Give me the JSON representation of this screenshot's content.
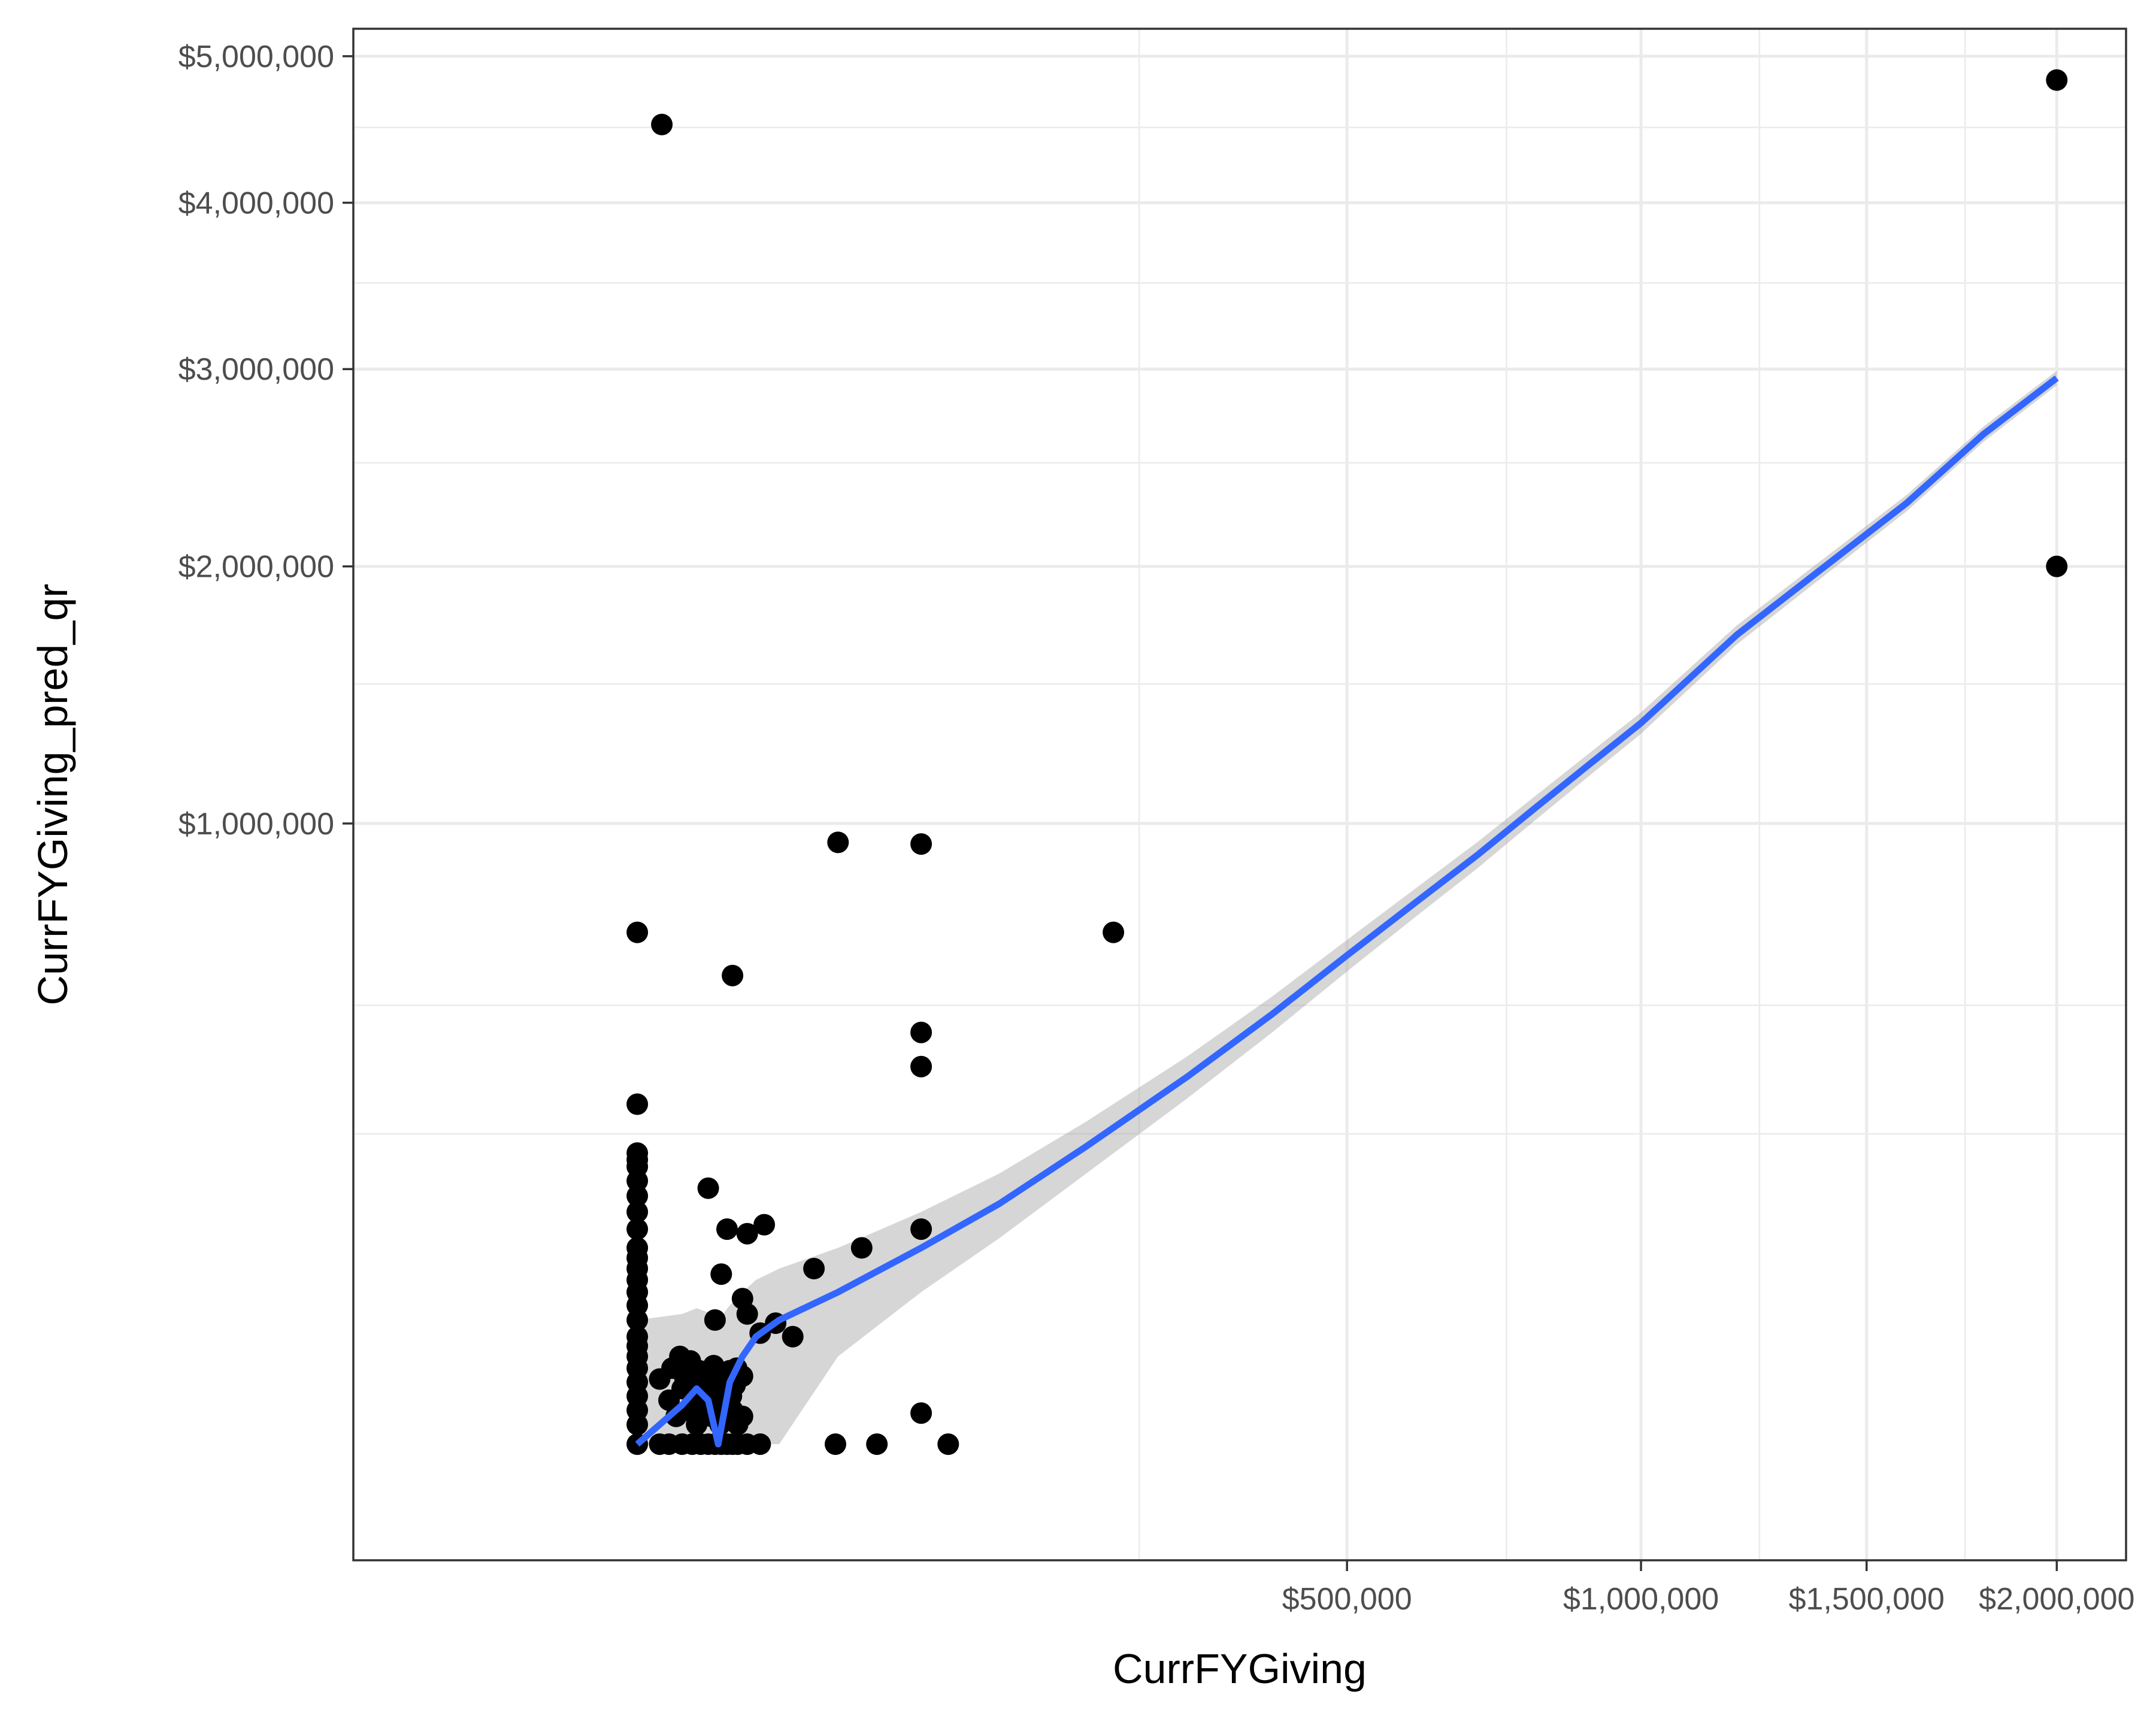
{
  "chart_data": {
    "type": "scatter",
    "title": "",
    "xlabel": "CurrFYGiving",
    "ylabel": "CurrFYGiving_pred_qr",
    "x_scale": "sqrt",
    "y_scale": "sqrt",
    "xlim": [
      -80000,
      2200000
    ],
    "ylim": [
      -35000,
      5200000
    ],
    "x_ticks": [
      {
        "value": 500000,
        "label": "$500,000"
      },
      {
        "value": 1000000,
        "label": "$1,000,000"
      },
      {
        "value": 1500000,
        "label": "$1,500,000"
      },
      {
        "value": 2000000,
        "label": "$2,000,000"
      }
    ],
    "x_minor_gridlines": [
      250000,
      750000,
      1250000,
      1750000
    ],
    "y_ticks": [
      {
        "value": 1000000,
        "label": "$1,000,000"
      },
      {
        "value": 2000000,
        "label": "$2,000,000"
      },
      {
        "value": 3000000,
        "label": "$3,000,000"
      },
      {
        "value": 4000000,
        "label": "$4,000,000"
      },
      {
        "value": 5000000,
        "label": "$5,000,000"
      }
    ],
    "y_minor_gridlines": [
      250000,
      500000,
      1500000,
      2500000,
      3500000,
      4500000
    ],
    "grid": true,
    "legend": "none",
    "colors": {
      "points": "#000000",
      "trend": "#3366ff",
      "band": "#999999",
      "grid": "#ebebeb",
      "border": "#333333"
    },
    "series": [
      {
        "kind": "points",
        "points": [
          [
            2000000,
            4830000
          ],
          [
            2000000,
            2000000
          ],
          [
            600,
            4520000
          ],
          [
            0,
            680000
          ],
          [
            40000,
            940000
          ],
          [
            80000,
            935000
          ],
          [
            225000,
            680000
          ],
          [
            9000,
            570000
          ],
          [
            80000,
            440000
          ],
          [
            80000,
            370000
          ],
          [
            0,
            300000
          ],
          [
            0,
            220000
          ],
          [
            0,
            210000
          ],
          [
            0,
            200000
          ],
          [
            0,
            180000
          ],
          [
            0,
            160000
          ],
          [
            0,
            140000
          ],
          [
            0,
            120000
          ],
          [
            0,
            100000
          ],
          [
            0,
            90000
          ],
          [
            0,
            80000
          ],
          [
            0,
            70000
          ],
          [
            0,
            60000
          ],
          [
            0,
            50000
          ],
          [
            0,
            40000
          ],
          [
            0,
            30000
          ],
          [
            0,
            25000
          ],
          [
            0,
            20000
          ],
          [
            0,
            15000
          ],
          [
            0,
            10000
          ],
          [
            0,
            6000
          ],
          [
            0,
            3000
          ],
          [
            0,
            1000
          ],
          [
            0,
            0
          ],
          [
            5000,
            170000
          ],
          [
            8000,
            120000
          ],
          [
            6000,
            40000
          ],
          [
            7000,
            75000
          ],
          [
            12000,
            115000
          ],
          [
            16000,
            125000
          ],
          [
            11000,
            55000
          ],
          [
            12000,
            44000
          ],
          [
            15000,
            32000
          ],
          [
            19000,
            38000
          ],
          [
            24000,
            30000
          ],
          [
            11000,
            12000
          ],
          [
            31000,
            80000
          ],
          [
            50000,
            100000
          ],
          [
            80000,
            120000
          ],
          [
            11000,
            2000
          ],
          [
            15000,
            0
          ],
          [
            39000,
            0
          ],
          [
            57000,
            0
          ],
          [
            80000,
            2500
          ],
          [
            96000,
            0
          ],
          [
            1000,
            5000
          ],
          [
            1500,
            2000
          ],
          [
            2000,
            8000
          ],
          [
            2500,
            3000
          ],
          [
            3000,
            10000
          ],
          [
            3500,
            1000
          ],
          [
            4000,
            6000
          ],
          [
            4500,
            3000
          ],
          [
            1200,
            15000
          ],
          [
            2200,
            12000
          ],
          [
            3300,
            4000
          ],
          [
            4200,
            9000
          ],
          [
            5000,
            12000
          ],
          [
            5500,
            2000
          ],
          [
            6000,
            8000
          ],
          [
            6500,
            4000
          ],
          [
            7000,
            12000
          ],
          [
            7500,
            2000
          ],
          [
            8000,
            5000
          ],
          [
            8500,
            14000
          ],
          [
            9000,
            3000
          ],
          [
            9500,
            9000
          ],
          [
            10000,
            1000
          ],
          [
            500,
            11000
          ],
          [
            1800,
            20000
          ],
          [
            2800,
            18000
          ],
          [
            3800,
            14000
          ],
          [
            4800,
            7000
          ],
          [
            5800,
            16000
          ],
          [
            6800,
            1000
          ],
          [
            7800,
            9000
          ],
          [
            8800,
            6000
          ],
          [
            9800,
            15000
          ],
          [
            2000,
            0
          ],
          [
            4000,
            0
          ],
          [
            6000,
            0
          ],
          [
            8000,
            0
          ],
          [
            10000,
            0
          ],
          [
            12000,
            0
          ],
          [
            500,
            0
          ],
          [
            1000,
            0
          ],
          [
            3000,
            0
          ],
          [
            5000,
            0
          ],
          [
            7000,
            0
          ],
          [
            9000,
            0
          ]
        ]
      },
      {
        "kind": "smooth",
        "points": [
          [
            0,
            0
          ],
          [
            2000,
            4000
          ],
          [
            3500,
            8000
          ],
          [
            5000,
            5000
          ],
          [
            6500,
            0
          ],
          [
            8500,
            10000
          ],
          [
            11000,
            20000
          ],
          [
            14000,
            30000
          ],
          [
            20000,
            40000
          ],
          [
            40000,
            60000
          ],
          [
            80000,
            100000
          ],
          [
            130000,
            150000
          ],
          [
            200000,
            230000
          ],
          [
            300000,
            350000
          ],
          [
            400000,
            480000
          ],
          [
            500000,
            620000
          ],
          [
            600000,
            760000
          ],
          [
            700000,
            900000
          ],
          [
            800000,
            1050000
          ],
          [
            900000,
            1200000
          ],
          [
            1000000,
            1350000
          ],
          [
            1200000,
            1700000
          ],
          [
            1400000,
            2000000
          ],
          [
            1600000,
            2300000
          ],
          [
            1800000,
            2650000
          ],
          [
            2000000,
            2950000
          ]
        ],
        "band_halfwidth": 40000
      }
    ]
  }
}
